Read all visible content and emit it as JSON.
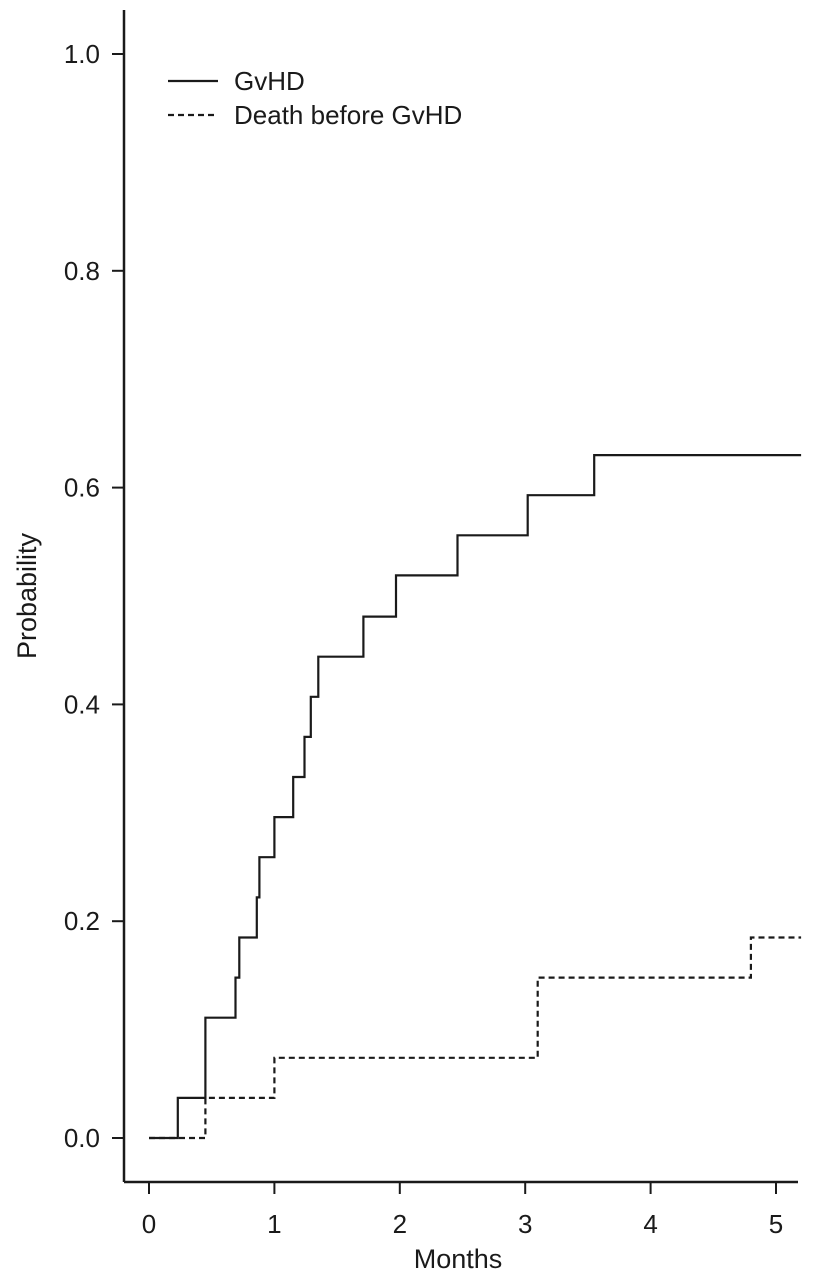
{
  "chart_data": {
    "type": "line",
    "step": true,
    "title": "",
    "xlabel": "Months",
    "ylabel": "Probability",
    "xlim": [
      -0.2,
      5.2
    ],
    "ylim": [
      -0.08,
      1.08
    ],
    "x_ticks": [
      0,
      1,
      2,
      3,
      4,
      5
    ],
    "x_tick_labels": [
      "0",
      "1",
      "2",
      "3",
      "4",
      "5"
    ],
    "y_ticks": [
      0.0,
      0.2,
      0.4,
      0.6,
      0.8,
      1.0
    ],
    "y_tick_labels": [
      "0.0",
      "0.2",
      "0.4",
      "0.6",
      "0.8",
      "1.0"
    ],
    "grid": false,
    "legend_position": "top-left",
    "series": [
      {
        "name": "GvHD",
        "style": "solid",
        "color": "#1a1a1a",
        "x": [
          0,
          0.23,
          0.45,
          0.69,
          0.72,
          0.86,
          0.88,
          1.0,
          1.15,
          1.24,
          1.29,
          1.35,
          1.71,
          1.97,
          2.46,
          3.02,
          3.55,
          5.2
        ],
        "y": [
          0.0,
          0.037,
          0.111,
          0.148,
          0.185,
          0.222,
          0.259,
          0.296,
          0.333,
          0.37,
          0.407,
          0.444,
          0.481,
          0.519,
          0.556,
          0.593,
          0.63,
          0.63
        ]
      },
      {
        "name": "Death before GvHD",
        "style": "dashed",
        "color": "#1a1a1a",
        "x": [
          0,
          0.45,
          1.0,
          3.1,
          4.8,
          5.2
        ],
        "y": [
          0.0,
          0.037,
          0.074,
          0.148,
          0.185,
          0.185
        ]
      }
    ]
  }
}
